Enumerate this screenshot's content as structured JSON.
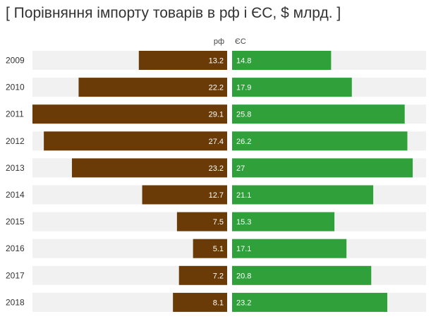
{
  "title": "[ Порівняння імпорту товарів в рф і ЄС, $ млрд. ]",
  "colors": {
    "left_bar": "#6a3b06",
    "right_bar": "#2fa03a",
    "track": "#f1f1f1"
  },
  "chart_data": {
    "type": "bar",
    "orientation": "horizontal-diverging",
    "title": "[ Порівняння імпорту товарів в рф і ЄС, $ млрд. ]",
    "categories": [
      "2009",
      "2010",
      "2011",
      "2012",
      "2013",
      "2014",
      "2015",
      "2016",
      "2017",
      "2018"
    ],
    "series": [
      {
        "name": "рф",
        "values": [
          13.2,
          22.2,
          29.1,
          27.4,
          23.2,
          12.7,
          7.5,
          5.1,
          7.2,
          8.1
        ]
      },
      {
        "name": "ЄС",
        "values": [
          14.8,
          17.9,
          25.8,
          26.2,
          27,
          21.1,
          15.3,
          17.1,
          20.8,
          23.2
        ]
      }
    ],
    "value_labels": {
      "рф": [
        "13.2",
        "22.2",
        "29.1",
        "27.4",
        "23.2",
        "12.7",
        "7.5",
        "5.1",
        "7.2",
        "8.1"
      ],
      "ЄС": [
        "14.8",
        "17.9",
        "25.8",
        "26.2",
        "27",
        "21.1",
        "15.3",
        "17.1",
        "20.8",
        "23.2"
      ]
    },
    "xlim": [
      0,
      29.1
    ],
    "grid": false,
    "legend": "top-center"
  }
}
